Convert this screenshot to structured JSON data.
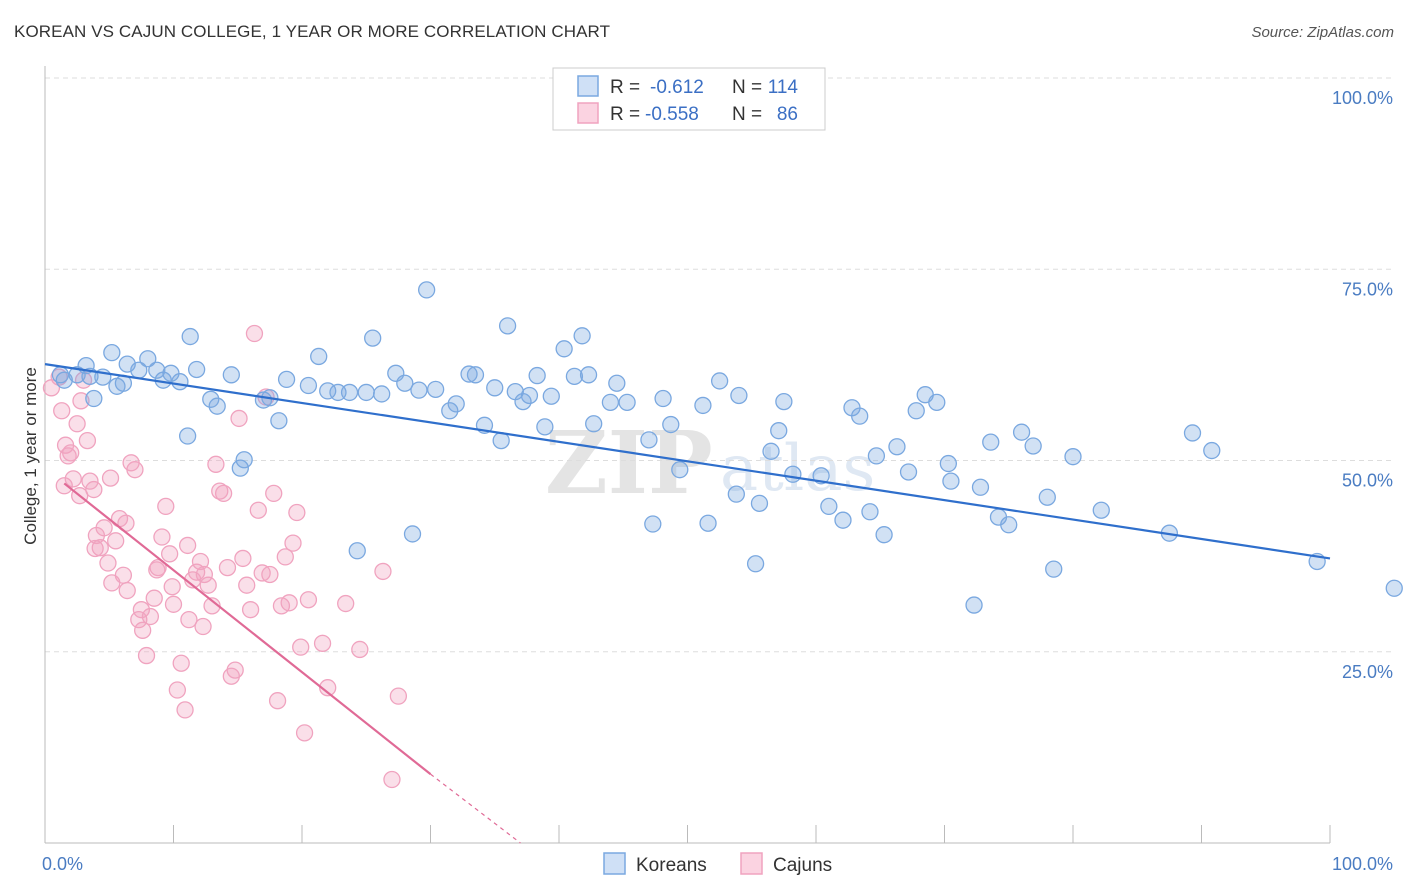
{
  "title": "KOREAN VS CAJUN COLLEGE, 1 YEAR OR MORE CORRELATION CHART",
  "source": "Source: ZipAtlas.com",
  "watermark": {
    "zip": "ZIP",
    "atlas": "atlas"
  },
  "colors": {
    "korean": "#7aa8e0",
    "korean_line": "#2f6fcc",
    "cajun": "#f0a3bf",
    "cajun_line": "#e06a96",
    "grid": "#dddddd",
    "tick_text": "#4a7cc2"
  },
  "chart_data": {
    "type": "scatter",
    "title": "KOREAN VS CAJUN COLLEGE, 1 YEAR OR MORE CORRELATION CHART",
    "xlabel": "",
    "ylabel": "College, 1 year or more",
    "xlim": [
      0,
      100
    ],
    "ylim": [
      0,
      100
    ],
    "x_tick_labels": [
      "0.0%",
      "100.0%"
    ],
    "y_ticks": [
      25,
      50,
      75,
      100
    ],
    "y_tick_labels": [
      "25.0%",
      "50.0%",
      "75.0%",
      "100.0%"
    ],
    "grid": true,
    "legend": {
      "placement": "top-center",
      "rows": [
        {
          "series": "Koreans",
          "r_label": "R =",
          "r_value": "-0.612",
          "n_label": "N =",
          "n_value": "114"
        },
        {
          "series": "Cajuns",
          "r_label": "R =",
          "r_value": "-0.558",
          "n_label": "N =",
          "n_value": "86"
        }
      ]
    },
    "bottom_legend": [
      "Koreans",
      "Cajuns"
    ],
    "series": [
      {
        "name": "Koreans",
        "trend": {
          "x": [
            0,
            100
          ],
          "y": [
            62.6,
            37.2
          ]
        },
        "points": [
          [
            1.2,
            61.2
          ],
          [
            1.5,
            60.5
          ],
          [
            2.5,
            61.2
          ],
          [
            3.2,
            62.4
          ],
          [
            3.5,
            61
          ],
          [
            3.8,
            58.1
          ],
          [
            4.5,
            60.9
          ],
          [
            5.2,
            64.1
          ],
          [
            5.6,
            59.7
          ],
          [
            6.1,
            60.1
          ],
          [
            6.4,
            62.6
          ],
          [
            7.3,
            61.8
          ],
          [
            8.0,
            63.3
          ],
          [
            8.7,
            61.8
          ],
          [
            9.2,
            60.5
          ],
          [
            9.8,
            61.4
          ],
          [
            10.5,
            60.3
          ],
          [
            11.1,
            53.2
          ],
          [
            11.3,
            66.2
          ],
          [
            11.8,
            61.9
          ],
          [
            12.9,
            58
          ],
          [
            13.4,
            57.1
          ],
          [
            14.5,
            61.2
          ],
          [
            15.2,
            49
          ],
          [
            15.5,
            50.1
          ],
          [
            17.0,
            57.9
          ],
          [
            17.5,
            58.2
          ],
          [
            18.2,
            55.2
          ],
          [
            18.8,
            60.6
          ],
          [
            20.5,
            59.8
          ],
          [
            21.3,
            63.6
          ],
          [
            22.0,
            59.1
          ],
          [
            22.8,
            58.9
          ],
          [
            23.7,
            58.9
          ],
          [
            24.3,
            38.2
          ],
          [
            25.0,
            58.9
          ],
          [
            25.5,
            66
          ],
          [
            26.2,
            58.7
          ],
          [
            27.3,
            61.4
          ],
          [
            28.0,
            60.1
          ],
          [
            28.6,
            40.4
          ],
          [
            29.1,
            59.2
          ],
          [
            29.7,
            72.3
          ],
          [
            30.4,
            59.3
          ],
          [
            31.5,
            56.5
          ],
          [
            32.0,
            57.4
          ],
          [
            33.0,
            61.3
          ],
          [
            33.5,
            61.2
          ],
          [
            34.2,
            54.6
          ],
          [
            35.0,
            59.5
          ],
          [
            35.5,
            52.6
          ],
          [
            36.0,
            67.6
          ],
          [
            36.6,
            59
          ],
          [
            37.2,
            57.7
          ],
          [
            37.7,
            58.5
          ],
          [
            38.3,
            61.1
          ],
          [
            38.9,
            54.4
          ],
          [
            39.4,
            58.4
          ],
          [
            40.4,
            64.6
          ],
          [
            41.2,
            61
          ],
          [
            41.8,
            66.3
          ],
          [
            42.3,
            61.2
          ],
          [
            42.7,
            54.8
          ],
          [
            44.0,
            57.6
          ],
          [
            44.5,
            60.1
          ],
          [
            45.3,
            57.6
          ],
          [
            47.0,
            52.7
          ],
          [
            47.3,
            41.7
          ],
          [
            48.1,
            58.1
          ],
          [
            48.7,
            54.7
          ],
          [
            49.4,
            48.8
          ],
          [
            51.2,
            57.2
          ],
          [
            51.6,
            41.8
          ],
          [
            52.5,
            60.4
          ],
          [
            53.8,
            45.6
          ],
          [
            54.0,
            58.5
          ],
          [
            55.3,
            36.5
          ],
          [
            55.6,
            44.4
          ],
          [
            56.5,
            51.2
          ],
          [
            57.1,
            53.9
          ],
          [
            57.5,
            57.7
          ],
          [
            58.2,
            48.2
          ],
          [
            60.4,
            48
          ],
          [
            61.0,
            44
          ],
          [
            62.1,
            42.2
          ],
          [
            62.8,
            56.9
          ],
          [
            63.4,
            55.8
          ],
          [
            64.2,
            43.3
          ],
          [
            64.7,
            50.6
          ],
          [
            65.3,
            40.3
          ],
          [
            66.3,
            51.8
          ],
          [
            67.2,
            48.5
          ],
          [
            67.8,
            56.5
          ],
          [
            68.5,
            58.6
          ],
          [
            69.4,
            57.6
          ],
          [
            70.3,
            49.6
          ],
          [
            70.5,
            47.3
          ],
          [
            72.3,
            31.1
          ],
          [
            72.8,
            46.5
          ],
          [
            73.6,
            52.4
          ],
          [
            74.2,
            42.6
          ],
          [
            75.0,
            41.6
          ],
          [
            76.0,
            53.7
          ],
          [
            76.9,
            51.9
          ],
          [
            78.0,
            45.2
          ],
          [
            78.5,
            35.8
          ],
          [
            80.0,
            50.5
          ],
          [
            82.2,
            43.5
          ],
          [
            87.5,
            40.5
          ],
          [
            89.3,
            53.6
          ],
          [
            90.8,
            51.3
          ],
          [
            99.0,
            36.8
          ],
          [
            105.0,
            33.3
          ]
        ]
      },
      {
        "name": "Cajuns",
        "trend": {
          "x": [
            1.5,
            30.0
          ],
          "y": [
            47,
            9
          ]
        },
        "trend_extension": {
          "x": [
            30.0,
            37.0
          ],
          "y": [
            9,
            0
          ]
        },
        "points": [
          [
            0.5,
            59.5
          ],
          [
            1.1,
            60.9
          ],
          [
            1.3,
            56.5
          ],
          [
            1.6,
            52
          ],
          [
            1.8,
            50.6
          ],
          [
            2.0,
            51
          ],
          [
            2.2,
            47.6
          ],
          [
            2.5,
            54.8
          ],
          [
            2.8,
            57.8
          ],
          [
            3.0,
            60.5
          ],
          [
            3.3,
            52.6
          ],
          [
            3.5,
            47.3
          ],
          [
            3.8,
            46.2
          ],
          [
            4.0,
            40.2
          ],
          [
            4.3,
            38.6
          ],
          [
            4.6,
            41.2
          ],
          [
            4.9,
            36.6
          ],
          [
            5.2,
            34
          ],
          [
            5.5,
            39.5
          ],
          [
            5.8,
            42.4
          ],
          [
            6.1,
            35
          ],
          [
            6.4,
            33
          ],
          [
            6.7,
            49.7
          ],
          [
            7.0,
            48.8
          ],
          [
            7.3,
            29.2
          ],
          [
            7.6,
            27.8
          ],
          [
            7.9,
            24.5
          ],
          [
            8.2,
            29.6
          ],
          [
            8.5,
            32
          ],
          [
            8.8,
            36
          ],
          [
            9.1,
            40
          ],
          [
            9.4,
            44
          ],
          [
            9.7,
            37.8
          ],
          [
            10.0,
            31.2
          ],
          [
            10.3,
            20
          ],
          [
            10.6,
            23.5
          ],
          [
            10.9,
            17.4
          ],
          [
            11.2,
            29.2
          ],
          [
            11.5,
            34.4
          ],
          [
            11.8,
            35.4
          ],
          [
            12.1,
            36.8
          ],
          [
            12.4,
            35.1
          ],
          [
            12.7,
            33.7
          ],
          [
            13.0,
            31
          ],
          [
            13.3,
            49.5
          ],
          [
            13.6,
            46
          ],
          [
            13.9,
            45.7
          ],
          [
            14.2,
            36
          ],
          [
            14.5,
            21.8
          ],
          [
            14.8,
            22.6
          ],
          [
            15.1,
            55.5
          ],
          [
            15.4,
            37.2
          ],
          [
            15.7,
            33.7
          ],
          [
            16.0,
            30.5
          ],
          [
            16.3,
            66.6
          ],
          [
            16.6,
            43.5
          ],
          [
            16.9,
            35.3
          ],
          [
            17.2,
            58.3
          ],
          [
            17.5,
            35.1
          ],
          [
            17.8,
            45.7
          ],
          [
            18.1,
            18.6
          ],
          [
            18.4,
            31
          ],
          [
            18.7,
            37.4
          ],
          [
            19.0,
            31.4
          ],
          [
            19.3,
            39.2
          ],
          [
            19.6,
            43.2
          ],
          [
            19.9,
            25.6
          ],
          [
            20.2,
            14.4
          ],
          [
            20.5,
            31.8
          ],
          [
            21.6,
            26.1
          ],
          [
            22.0,
            20.3
          ],
          [
            23.4,
            31.3
          ],
          [
            24.5,
            25.3
          ],
          [
            26.3,
            35.5
          ],
          [
            27.0,
            8.3
          ],
          [
            27.5,
            19.2
          ],
          [
            1.5,
            46.7
          ],
          [
            2.7,
            45.4
          ],
          [
            3.9,
            38.5
          ],
          [
            5.1,
            47.7
          ],
          [
            6.3,
            41.8
          ],
          [
            7.5,
            30.5
          ],
          [
            8.7,
            35.7
          ],
          [
            9.9,
            33.5
          ],
          [
            11.1,
            38.9
          ],
          [
            12.3,
            28.3
          ]
        ]
      }
    ]
  }
}
